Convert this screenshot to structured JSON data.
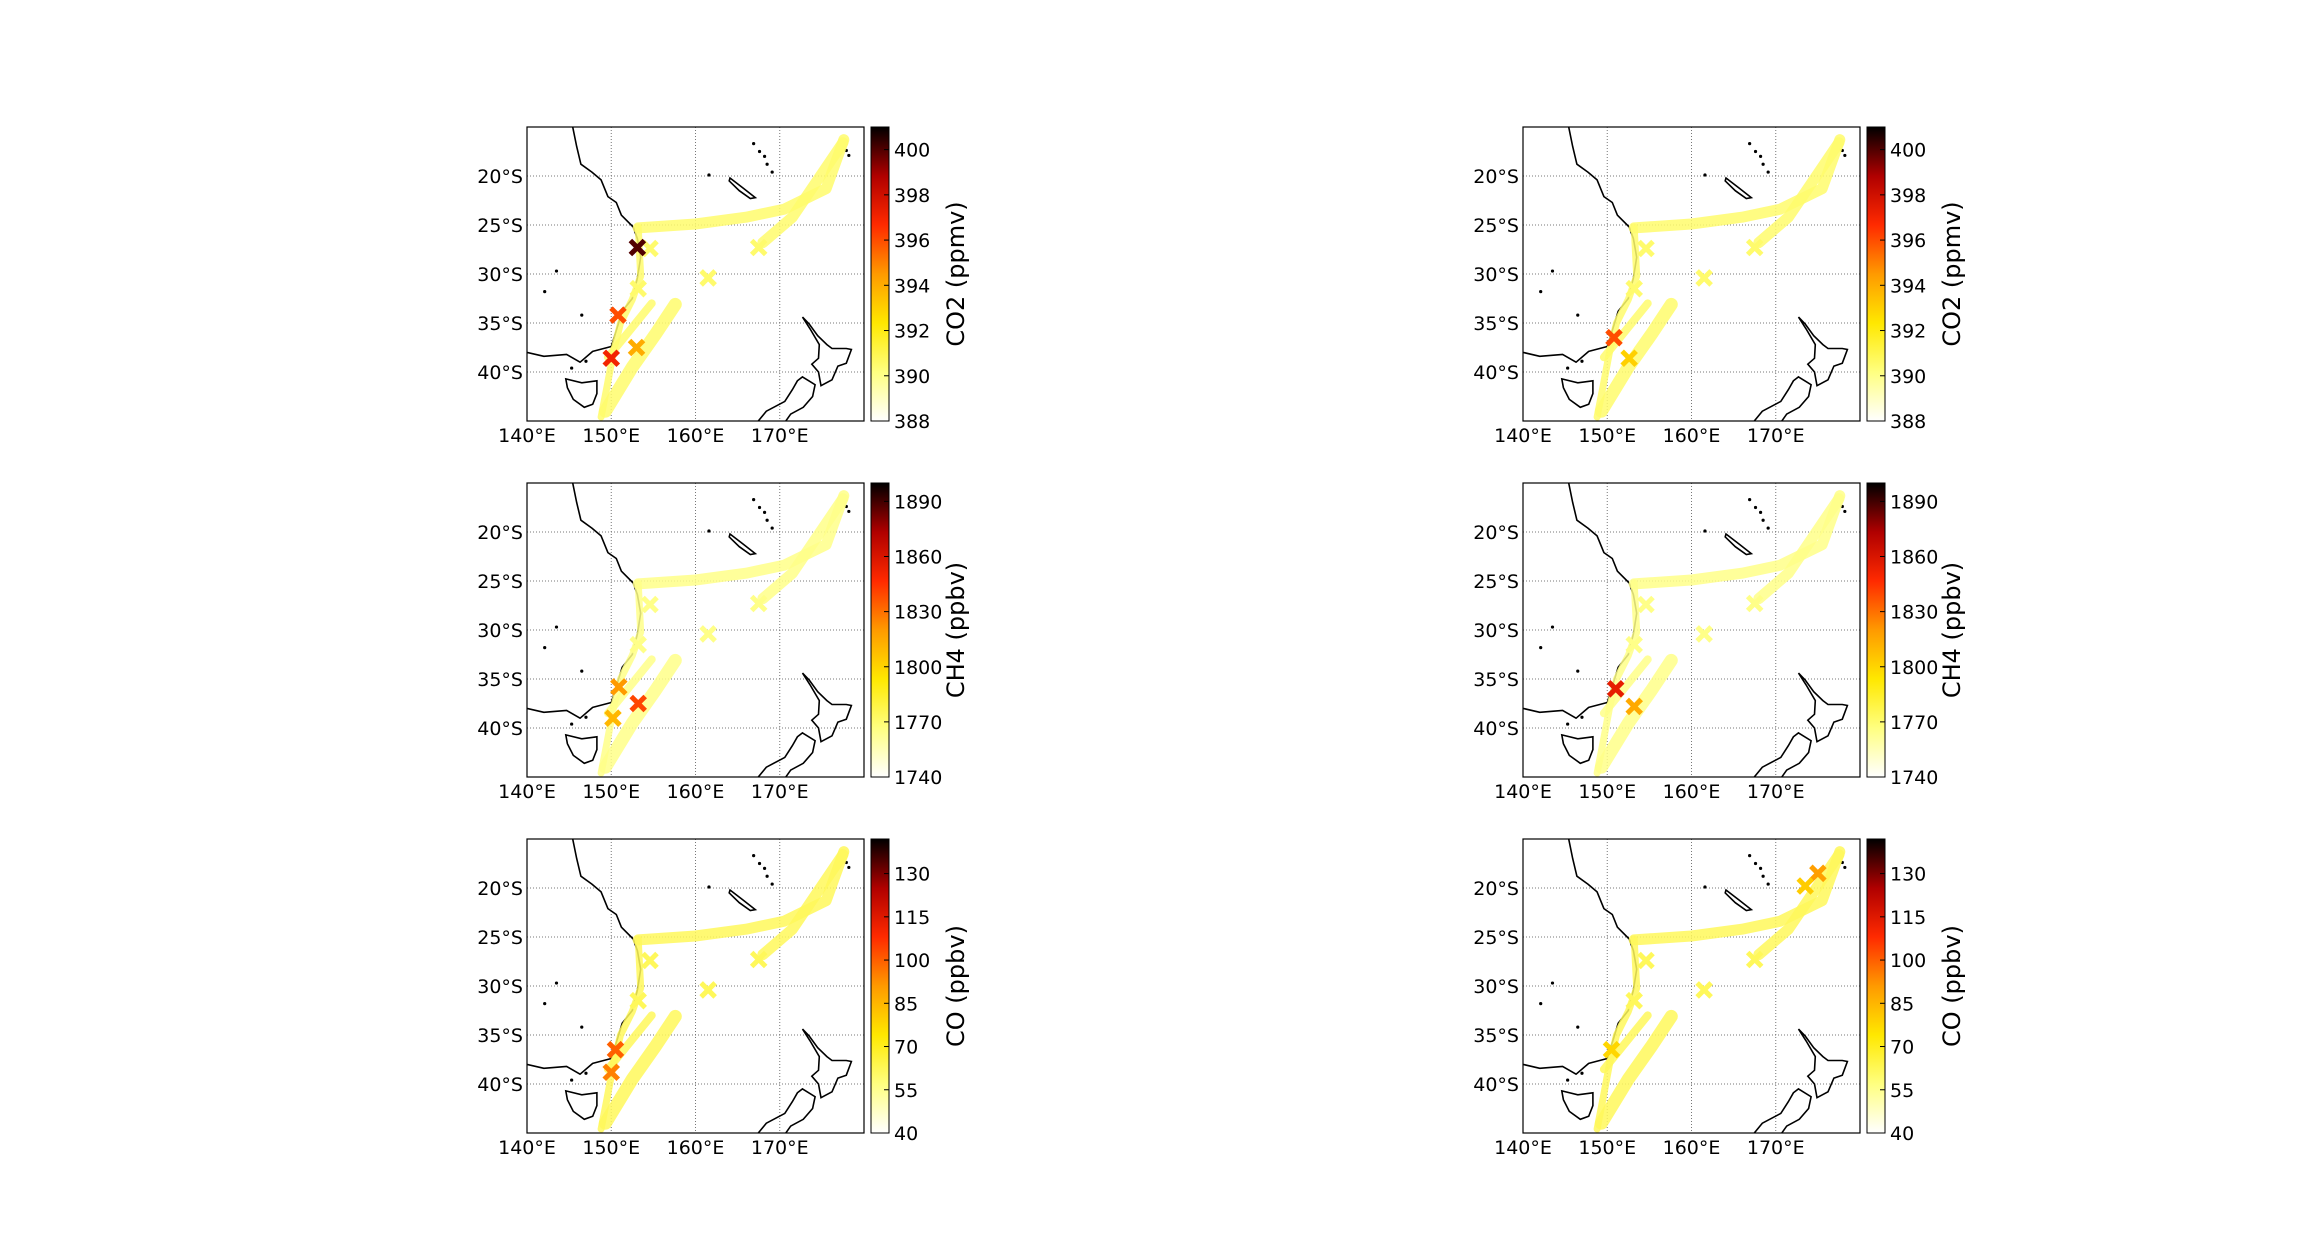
{
  "chart_data": [
    {
      "type": "heatmap",
      "title": "",
      "panel": "left-row1",
      "colorbar": {
        "label": "CO2 (ppmv)",
        "min": 388,
        "max": 401,
        "ticks": [
          "388",
          "390",
          "392",
          "394",
          "396",
          "398",
          "400"
        ],
        "tick_values": [
          388,
          390,
          392,
          394,
          396,
          398,
          400
        ]
      },
      "xlim": [
        140,
        180
      ],
      "ylim": [
        -45,
        -15
      ],
      "x_ticks": [
        "140°E",
        "150°E",
        "160°E",
        "170°E"
      ],
      "x_tick_values": [
        140,
        150,
        160,
        170
      ],
      "y_ticks": [
        "20°S",
        "25°S",
        "30°S",
        "35°S",
        "40°S"
      ],
      "y_tick_values": [
        -20,
        -25,
        -30,
        -35,
        -40
      ],
      "grid": true,
      "hotspots": [
        {
          "lon": 153.1,
          "lat": -27.3,
          "value": 400
        },
        {
          "lon": 150.8,
          "lat": -34.2,
          "value": 396
        },
        {
          "lon": 150.0,
          "lat": -38.6,
          "value": 397
        },
        {
          "lon": 153.0,
          "lat": -37.5,
          "value": 394
        }
      ],
      "yellow_level": 390.5
    },
    {
      "type": "heatmap",
      "title": "",
      "panel": "right-row1",
      "colorbar": {
        "label": "CO2 (ppmv)",
        "min": 388,
        "max": 401,
        "ticks": [
          "388",
          "390",
          "392",
          "394",
          "396",
          "398",
          "400"
        ],
        "tick_values": [
          388,
          390,
          392,
          394,
          396,
          398,
          400
        ]
      },
      "xlim": [
        140,
        180
      ],
      "ylim": [
        -45,
        -15
      ],
      "x_ticks": [
        "140°E",
        "150°E",
        "160°E",
        "170°E"
      ],
      "x_tick_values": [
        140,
        150,
        160,
        170
      ],
      "y_ticks": [
        "20°S",
        "25°S",
        "30°S",
        "35°S",
        "40°S"
      ],
      "y_tick_values": [
        -20,
        -25,
        -30,
        -35,
        -40
      ],
      "grid": true,
      "hotspots": [
        {
          "lon": 150.8,
          "lat": -36.5,
          "value": 396
        },
        {
          "lon": 152.6,
          "lat": -38.6,
          "value": 393
        }
      ],
      "yellow_level": 390.5
    },
    {
      "type": "heatmap",
      "title": "",
      "panel": "left-row2",
      "colorbar": {
        "label": "CH4 (ppbv)",
        "min": 1740,
        "max": 1900,
        "ticks": [
          "1740",
          "1770",
          "1800",
          "1830",
          "1860",
          "1890"
        ],
        "tick_values": [
          1740,
          1770,
          1800,
          1830,
          1860,
          1890
        ]
      },
      "xlim": [
        140,
        180
      ],
      "ylim": [
        -45,
        -15
      ],
      "x_ticks": [
        "140°E",
        "150°E",
        "160°E",
        "170°E"
      ],
      "x_tick_values": [
        140,
        150,
        160,
        170
      ],
      "y_ticks": [
        "20°S",
        "25°S",
        "30°S",
        "35°S",
        "40°S"
      ],
      "y_tick_values": [
        -20,
        -25,
        -30,
        -35,
        -40
      ],
      "grid": true,
      "hotspots": [
        {
          "lon": 153.2,
          "lat": -37.5,
          "value": 1840
        },
        {
          "lon": 150.9,
          "lat": -35.8,
          "value": 1820
        },
        {
          "lon": 150.2,
          "lat": -39.0,
          "value": 1810
        }
      ],
      "yellow_level": 1765
    },
    {
      "type": "heatmap",
      "title": "",
      "panel": "right-row2",
      "colorbar": {
        "label": "CH4 (ppbv)",
        "min": 1740,
        "max": 1900,
        "ticks": [
          "1740",
          "1770",
          "1800",
          "1830",
          "1860",
          "1890"
        ],
        "tick_values": [
          1740,
          1770,
          1800,
          1830,
          1860,
          1890
        ]
      },
      "xlim": [
        140,
        180
      ],
      "ylim": [
        -45,
        -15
      ],
      "x_ticks": [
        "140°E",
        "150°E",
        "160°E",
        "170°E"
      ],
      "x_tick_values": [
        140,
        150,
        160,
        170
      ],
      "y_ticks": [
        "20°S",
        "25°S",
        "30°S",
        "35°S",
        "40°S"
      ],
      "y_tick_values": [
        -20,
        -25,
        -30,
        -35,
        -40
      ],
      "grid": true,
      "hotspots": [
        {
          "lon": 151.0,
          "lat": -36.0,
          "value": 1855
        },
        {
          "lon": 153.2,
          "lat": -37.8,
          "value": 1815
        }
      ],
      "yellow_level": 1765
    },
    {
      "type": "heatmap",
      "title": "",
      "panel": "left-row3",
      "colorbar": {
        "label": "CO (ppbv)",
        "min": 40,
        "max": 142,
        "ticks": [
          "40",
          "55",
          "70",
          "85",
          "100",
          "115",
          "130"
        ],
        "tick_values": [
          40,
          55,
          70,
          85,
          100,
          115,
          130
        ]
      },
      "xlim": [
        140,
        180
      ],
      "ylim": [
        -45,
        -15
      ],
      "x_ticks": [
        "140°E",
        "150°E",
        "160°E",
        "170°E"
      ],
      "x_tick_values": [
        140,
        150,
        160,
        170
      ],
      "y_ticks": [
        "20°S",
        "25°S",
        "30°S",
        "35°S",
        "40°S"
      ],
      "y_tick_values": [
        -20,
        -25,
        -30,
        -35,
        -40
      ],
      "grid": true,
      "hotspots": [
        {
          "lon": 150.5,
          "lat": -36.5,
          "value": 100
        },
        {
          "lon": 150.0,
          "lat": -38.8,
          "value": 95
        }
      ],
      "yellow_level": 62
    },
    {
      "type": "heatmap",
      "title": "",
      "panel": "right-row3",
      "colorbar": {
        "label": "CO (ppbv)",
        "min": 40,
        "max": 142,
        "ticks": [
          "40",
          "55",
          "70",
          "85",
          "100",
          "115",
          "130"
        ],
        "tick_values": [
          40,
          55,
          70,
          85,
          100,
          115,
          130
        ]
      },
      "xlim": [
        140,
        180
      ],
      "ylim": [
        -45,
        -15
      ],
      "x_ticks": [
        "140°E",
        "150°E",
        "160°E",
        "170°E"
      ],
      "x_tick_values": [
        140,
        150,
        160,
        170
      ],
      "y_ticks": [
        "20°S",
        "25°S",
        "30°S",
        "35°S",
        "40°S"
      ],
      "y_tick_values": [
        -20,
        -25,
        -30,
        -35,
        -40
      ],
      "grid": true,
      "hotspots": [
        {
          "lon": 175.0,
          "lat": -18.5,
          "value": 90
        },
        {
          "lon": 173.5,
          "lat": -19.8,
          "value": 80
        },
        {
          "lon": 150.5,
          "lat": -36.5,
          "value": 78
        }
      ],
      "yellow_level": 62
    }
  ],
  "colormap": [
    "#ffffff",
    "#ffff80",
    "#ffe800",
    "#ff9a00",
    "#ff2a00",
    "#b00000",
    "#000000"
  ]
}
